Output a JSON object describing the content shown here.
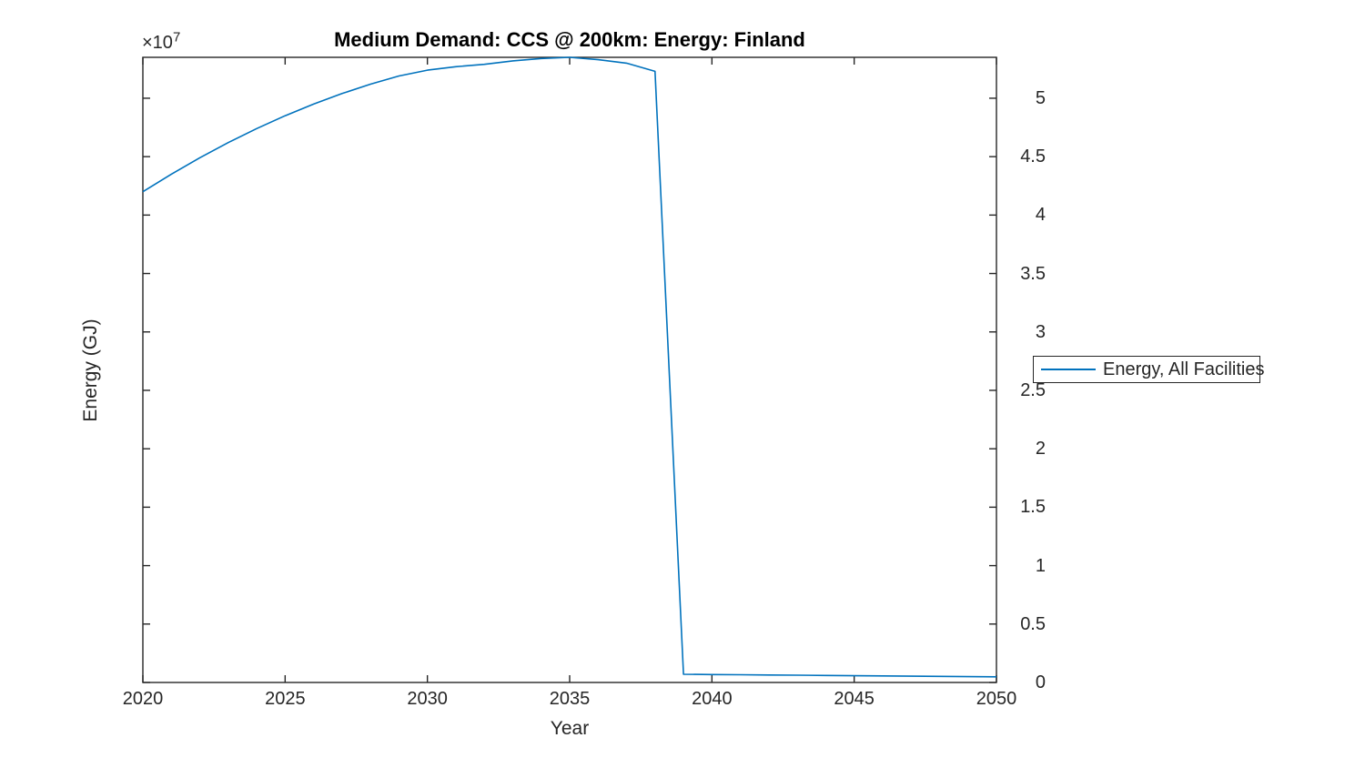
{
  "chart": {
    "title": "Medium Demand: CCS @ 200km: Energy: Finland",
    "xlabel": "Year",
    "ylabel": "Energy (GJ)",
    "y_exponent_base": "×10",
    "y_exponent_power": "7",
    "legend": {
      "entries": [
        {
          "label": "Energy, All Facilities",
          "color": "#0072BD"
        }
      ]
    }
  },
  "chart_data": {
    "type": "line",
    "title": "Medium Demand: CCS @ 200km: Energy: Finland",
    "xlabel": "Year",
    "ylabel": "Energy (GJ)",
    "y_axis_multiplier": "×10^7",
    "xlim": [
      2020,
      2050
    ],
    "ylim": [
      0,
      53500000
    ],
    "xticks": [
      2020,
      2025,
      2030,
      2035,
      2040,
      2045,
      2050
    ],
    "yticks": [
      0,
      5000000,
      10000000,
      15000000,
      20000000,
      25000000,
      30000000,
      35000000,
      40000000,
      45000000,
      50000000
    ],
    "ytick_labels": [
      "0",
      "0.5",
      "1",
      "1.5",
      "2",
      "2.5",
      "3",
      "3.5",
      "4",
      "4.5",
      "5"
    ],
    "grid": false,
    "legend_position": "right-outside",
    "series": [
      {
        "name": "Energy, All Facilities",
        "color": "#0072BD",
        "x": [
          2020,
          2021,
          2022,
          2023,
          2024,
          2025,
          2026,
          2027,
          2028,
          2029,
          2030,
          2031,
          2032,
          2033,
          2034,
          2035,
          2036,
          2037,
          2038,
          2039,
          2040,
          2041,
          2042,
          2043,
          2044,
          2045,
          2046,
          2047,
          2048,
          2049,
          2050
        ],
        "y": [
          42000000,
          43500000,
          44900000,
          46200000,
          47400000,
          48500000,
          49500000,
          50400000,
          51200000,
          51900000,
          52400000,
          52700000,
          52900000,
          53200000,
          53400000,
          53500000,
          53300000,
          53000000,
          52300000,
          700000,
          680000,
          660000,
          640000,
          620000,
          600000,
          580000,
          560000,
          540000,
          520000,
          500000,
          480000
        ]
      }
    ]
  },
  "colors": {
    "line": "#0072BD",
    "axis": "#262626",
    "background": "#ffffff",
    "title": "#000000"
  }
}
